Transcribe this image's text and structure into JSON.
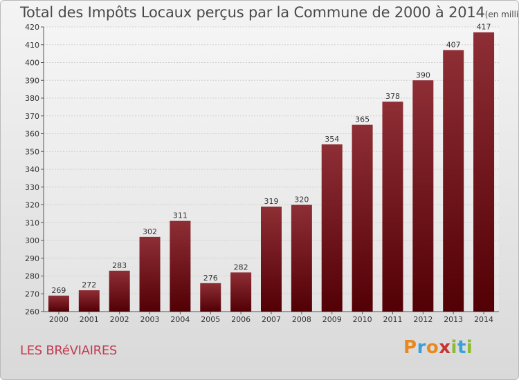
{
  "title": "Total des Impôts Locaux perçus par la Commune de 2000 à 2014",
  "unit_note": "(en milliers d'€)",
  "commune": "LES BRéVIAIRES",
  "logo": {
    "letters": [
      "P",
      "r",
      "o",
      "x",
      "i",
      "t",
      "i"
    ],
    "colors": [
      "#e8891d",
      "#3aa0d8",
      "#e8891d",
      "#c7342f",
      "#8bbb2f",
      "#3aa0d8",
      "#8bbb2f"
    ]
  },
  "chart_data": {
    "type": "bar",
    "categories": [
      "2000",
      "2001",
      "2002",
      "2003",
      "2004",
      "2005",
      "2006",
      "2007",
      "2008",
      "2009",
      "2010",
      "2011",
      "2012",
      "2013",
      "2014"
    ],
    "values": [
      269,
      272,
      283,
      302,
      311,
      276,
      282,
      319,
      320,
      354,
      365,
      378,
      390,
      407,
      417
    ],
    "ylim": [
      260,
      420
    ],
    "yticks": [
      260,
      270,
      280,
      290,
      300,
      310,
      320,
      330,
      340,
      350,
      360,
      370,
      380,
      390,
      400,
      410,
      420
    ],
    "bar_color": "#7a1d24",
    "grid": true,
    "xlabel": "",
    "ylabel": ""
  }
}
